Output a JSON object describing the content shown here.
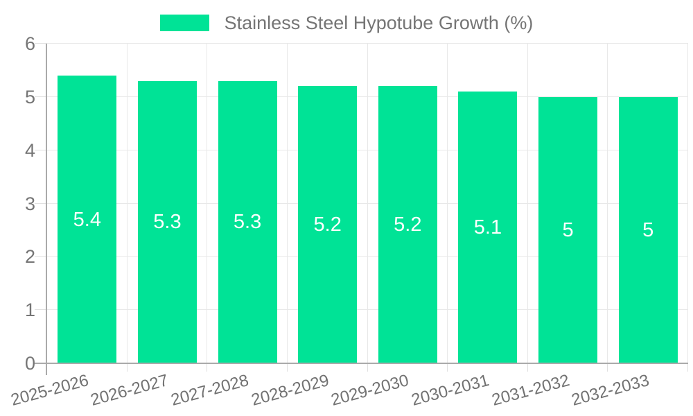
{
  "chart_data": {
    "type": "bar",
    "title": "Stainless Steel Hypotube Growth (%)",
    "legend": [
      {
        "label": "Stainless Steel Hypotube Growth (%)",
        "color": "#00E396"
      }
    ],
    "legend_position": "top",
    "categories": [
      "2025-2026",
      "2026-2027",
      "2027-2028",
      "2028-2029",
      "2029-2030",
      "2030-2031",
      "2031-2032",
      "2032-2033"
    ],
    "series": [
      {
        "name": "Stainless Steel Hypotube Growth (%)",
        "values": [
          5.4,
          5.3,
          5.3,
          5.2,
          5.2,
          5.1,
          5,
          5
        ]
      }
    ],
    "bar_value_labels": [
      "5.4",
      "5.3",
      "5.3",
      "5.2",
      "5.2",
      "5.1",
      "5",
      "5"
    ],
    "xlabel": "",
    "ylabel": "",
    "ylim": [
      0,
      6
    ],
    "yticks": [
      0,
      1,
      2,
      3,
      4,
      5,
      6
    ],
    "grid": true,
    "colors": {
      "bar": "#00E396",
      "bar_label_text": "#ffffff",
      "axis_text": "#757575",
      "gridline": "#e8e8e8",
      "axis_line": "#aaaaaa",
      "legend_text": "#757575"
    }
  }
}
